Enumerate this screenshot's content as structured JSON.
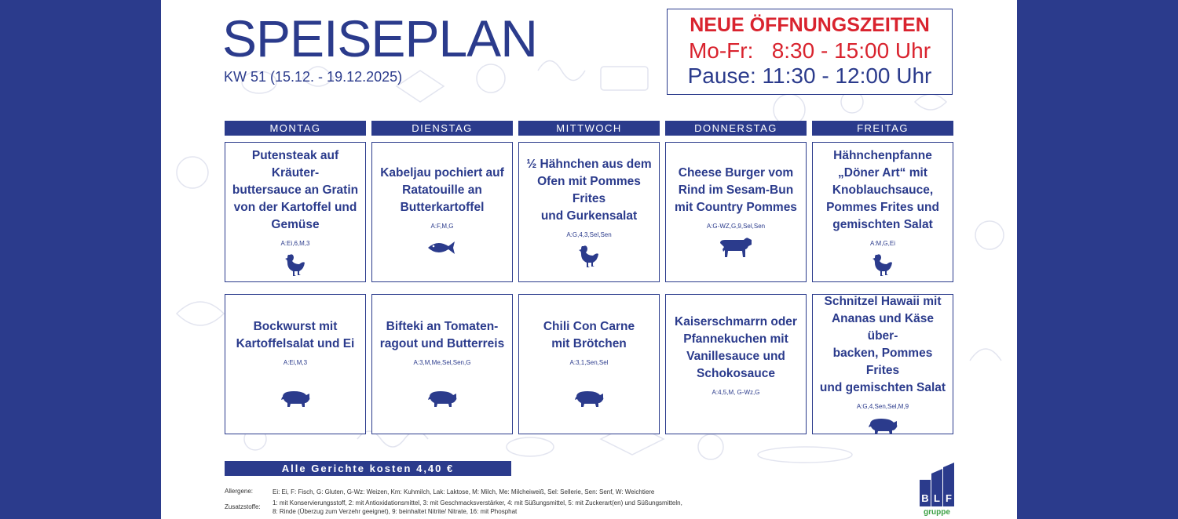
{
  "header": {
    "title": "SPEISEPLAN",
    "week": "KW 51 (15.12. - 19.12.2025)"
  },
  "hours": {
    "title": "NEUE ÖFFNUNGSZEITEN",
    "row1": "Mo-Fr:   8:30 - 15:00 Uhr",
    "row2": "Pause: 11:30 - 12:00 Uhr"
  },
  "days": [
    "MONTAG",
    "DIENSTAG",
    "MITTWOCH",
    "DONNERSTAG",
    "FREITAG"
  ],
  "row1": [
    {
      "dish": "Putensteak auf Kräuter-\nbuttersauce an Gratin\nvon der Kartoffel und\nGemüse",
      "allergens": "A:Ei,6,M,3",
      "animal": "chicken-icon"
    },
    {
      "dish": "Kabeljau pochiert auf\nRatatouille an\nButterkartoffel",
      "allergens": "A:F,M,G",
      "animal": "fish-icon"
    },
    {
      "dish": "½ Hähnchen aus dem\nOfen mit Pommes Frites\nund Gurkensalat",
      "allergens": "A:G,4,3,Sel,Sen",
      "animal": "chicken-icon"
    },
    {
      "dish": "Cheese Burger vom\nRind im Sesam-Bun\nmit Country Pommes",
      "allergens": "A:G-WZ,G,9,Sel,Sen",
      "animal": "cow-icon"
    },
    {
      "dish": "Hähnchenpfanne\n„Döner Art“ mit\nKnoblauchsauce,\nPommes Frites und\ngemischten Salat",
      "allergens": "A:M,G,Ei",
      "animal": "chicken-icon"
    }
  ],
  "row2": [
    {
      "dish": "Bockwurst mit\nKartoffelsalat und Ei",
      "allergens": "A:Ei,M,3",
      "animal": "pig-icon"
    },
    {
      "dish": "Bifteki an Tomaten-\nragout und Butterreis",
      "allergens": "A:3,M,Me,Sel,Sen,G",
      "animal": "pig-icon"
    },
    {
      "dish": "Chili Con Carne\nmit Brötchen",
      "allergens": "A:3,1,Sen,Sel",
      "animal": "pig-icon"
    },
    {
      "dish": "Kaiserschmarrn oder\nPfannekuchen mit\nVanillesauce und\nSchokosauce",
      "allergens": "A:4,5,M, G-Wz,G",
      "animal": ""
    },
    {
      "dish": "Schnitzel Hawaii mit\nAnanas und Käse über-\nbacken, Pommes Frites\nund gemischten Salat",
      "allergens": "A:G,4,Sen,Sel,M,9",
      "animal": "pig-icon"
    }
  ],
  "price": "Alle Gerichte kosten 4,40 €",
  "legend": {
    "allergene_label": "Allergene:",
    "allergene_text": "Ei: Ei, F: Fisch, G: Gluten, G-Wz: Weizen, Km: Kuhmilch, Lak: Laktose, M: Milch, Me: Milcheiweiß, Sel: Sellerie, Sen: Senf, W: Weichtiere",
    "zusatz_label": "Zusatzstoffe:",
    "zusatz_text1": "1: mit Konservierungsstoff, 2: mit Antioxidationsmittel, 3: mit Geschmacksverstärker, 4: mit Süßungsmittel, 5: mit Zuckerart(en) und Süßungsmitteln,",
    "zusatz_text2": "8: Rinde (Überzug zum Verzehr geeignet), 9: beinhaltet Nitrite/ Nitrate, 16: mit Phosphat"
  },
  "logo": {
    "letters": "BLF",
    "sub": "gruppe"
  },
  "colors": {
    "navy": "#2b3b8c",
    "red": "#d9232e",
    "green": "#3aa043"
  }
}
